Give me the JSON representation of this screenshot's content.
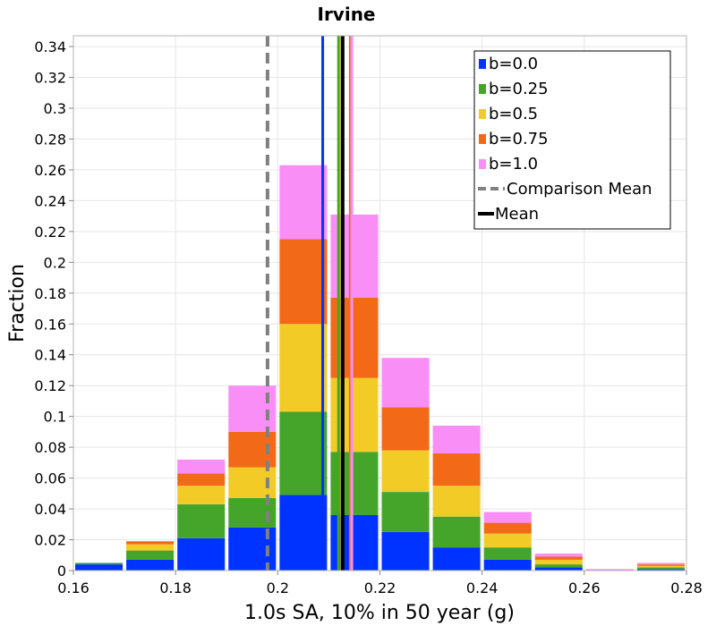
{
  "chart_data": {
    "type": "bar",
    "stacked": true,
    "title": "Irvine",
    "xlabel": "1.0s SA, 10% in 50 year (g)",
    "ylabel": "Fraction",
    "xlim": [
      0.16,
      0.28
    ],
    "ylim": [
      0,
      0.347
    ],
    "xticks": [
      "0.16",
      "0.18",
      "0.2",
      "0.22",
      "0.24",
      "0.26",
      "0.28"
    ],
    "yticks": [
      "0",
      "0.02",
      "0.04",
      "0.06",
      "0.08",
      "0.1",
      "0.12",
      "0.14",
      "0.16",
      "0.18",
      "0.2",
      "0.22",
      "0.24",
      "0.26",
      "0.28",
      "0.3",
      "0.32",
      "0.34"
    ],
    "grid": true,
    "legend_position": "top-right",
    "bin_starts": [
      0.16,
      0.17,
      0.18,
      0.19,
      0.2,
      0.21,
      0.22,
      0.23,
      0.24,
      0.25,
      0.26,
      0.27
    ],
    "bin_width": 0.01,
    "series": [
      {
        "name": "b=0.0",
        "color": "#0033ff",
        "values": [
          0.004,
          0.007,
          0.021,
          0.028,
          0.049,
          0.036,
          0.025,
          0.015,
          0.007,
          0.002,
          0.0,
          0.001
        ]
      },
      {
        "name": "b=0.25",
        "color": "#44a52a",
        "values": [
          0.001,
          0.006,
          0.022,
          0.019,
          0.054,
          0.041,
          0.026,
          0.02,
          0.008,
          0.002,
          0.0,
          0.001
        ]
      },
      {
        "name": "b=0.5",
        "color": "#f2cb27",
        "values": [
          0.0,
          0.004,
          0.012,
          0.02,
          0.057,
          0.048,
          0.027,
          0.02,
          0.009,
          0.003,
          0.0,
          0.001
        ]
      },
      {
        "name": "b=0.75",
        "color": "#f26a18",
        "values": [
          0.0,
          0.002,
          0.008,
          0.023,
          0.055,
          0.052,
          0.028,
          0.021,
          0.007,
          0.002,
          0.0,
          0.001
        ]
      },
      {
        "name": "b=1.0",
        "color": "#fa8ef7",
        "values": [
          0.0,
          0.0,
          0.009,
          0.03,
          0.048,
          0.054,
          0.032,
          0.018,
          0.007,
          0.002,
          0.001,
          0.001
        ]
      }
    ],
    "vertical_lines": [
      {
        "name": "b=0.0 mean",
        "x": 0.2088,
        "color": "#0033ff",
        "style": "solid"
      },
      {
        "name": "b=0.25 mean",
        "x": 0.2119,
        "color": "#44a52a",
        "style": "solid"
      },
      {
        "name": "b=0.5 mean",
        "x": 0.2125,
        "color": "#f2cb27",
        "style": "solid"
      },
      {
        "name": "b=0.75 mean",
        "x": 0.2142,
        "color": "#f26a18",
        "style": "solid"
      },
      {
        "name": "b=1.0 mean",
        "x": 0.2145,
        "color": "#fa8ef7",
        "style": "solid"
      },
      {
        "name": "Comparison Mean",
        "x": 0.198,
        "color": "#808080",
        "style": "dashed"
      },
      {
        "name": "Mean",
        "x": 0.2127,
        "color": "#000000",
        "style": "solid"
      }
    ],
    "legend": [
      {
        "label": "b=0.0",
        "color": "#0033ff",
        "kind": "box"
      },
      {
        "label": "b=0.25",
        "color": "#44a52a",
        "kind": "box"
      },
      {
        "label": "b=0.5",
        "color": "#f2cb27",
        "kind": "box"
      },
      {
        "label": "b=0.75",
        "color": "#f26a18",
        "kind": "box"
      },
      {
        "label": "b=1.0",
        "color": "#fa8ef7",
        "kind": "box"
      },
      {
        "label": "Comparison Mean",
        "color": "#808080",
        "kind": "dashed"
      },
      {
        "label": "Mean",
        "color": "#000000",
        "kind": "solid"
      }
    ]
  }
}
